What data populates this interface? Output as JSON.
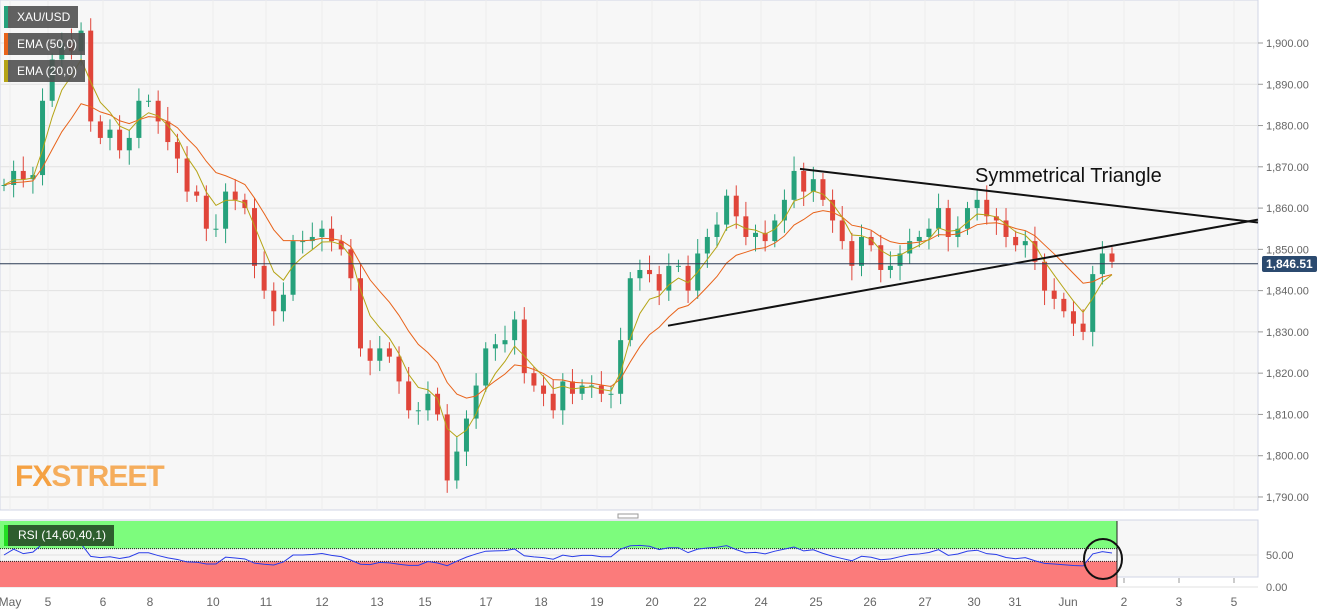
{
  "chart_data": {
    "type": "candlestick",
    "symbol": "XAU/USD",
    "indicators": [
      "EMA (50,0)",
      "EMA (20,0)"
    ],
    "colors": {
      "up": "#26a17b",
      "down": "#e0453a",
      "ema50": "#e8631a",
      "ema20": "#b5a416",
      "rsi": "#2a3de8",
      "overbought": "#7dfc7d",
      "oversold": "#fb7b7b"
    },
    "y_ticks": [
      "1,790.00",
      "1,800.00",
      "1,810.00",
      "1,820.00",
      "1,830.00",
      "1,840.00",
      "1,850.00",
      "1,860.00",
      "1,870.00",
      "1,880.00",
      "1,890.00",
      "1,900.00"
    ],
    "ylim": [
      1786,
      1911
    ],
    "x_ticks": [
      "May",
      "5",
      "6",
      "8",
      "10",
      "11",
      "12",
      "13",
      "15",
      "17",
      "18",
      "19",
      "20",
      "22",
      "24",
      "25",
      "26",
      "27",
      "30",
      "31",
      "Jun",
      "2",
      "3",
      "5"
    ],
    "approx_closes": [
      1865.6,
      1869,
      1867,
      1868,
      1886,
      1896,
      1900,
      1898,
      1903,
      1881,
      1877,
      1879,
      1874,
      1877,
      1886,
      1886,
      1881,
      1876,
      1872,
      1864,
      1863,
      1855,
      1855,
      1864,
      1862,
      1860,
      1846,
      1840,
      1835,
      1839,
      1852,
      1852,
      1853,
      1855,
      1852,
      1850,
      1843,
      1826,
      1823,
      1826,
      1824,
      1818,
      1811,
      1811,
      1815,
      1810,
      1794,
      1801,
      1809,
      1817,
      1826,
      1827,
      1828,
      1833,
      1820,
      1817,
      1815,
      1811,
      1818,
      1815,
      1817,
      1817,
      1815,
      1815,
      1828,
      1843,
      1845,
      1844,
      1840,
      1846,
      1846,
      1840,
      1849,
      1853,
      1856,
      1863,
      1858,
      1853,
      1854,
      1852,
      1857,
      1862,
      1869,
      1864,
      1867,
      1862,
      1857,
      1852,
      1846,
      1853,
      1851,
      1845,
      1846,
      1849,
      1852,
      1853,
      1855,
      1860,
      1853,
      1855,
      1860,
      1862,
      1858,
      1857,
      1853,
      1851,
      1852,
      1847,
      1840,
      1838,
      1835,
      1832,
      1830,
      1844,
      1849,
      1847
    ],
    "current_price": "1,846.51",
    "current_price_value": 1846.51,
    "annotation": "Symmetrical Triangle",
    "trendlines": [
      {
        "name": "upper",
        "from": {
          "x": "24",
          "y": 1869.5
        },
        "to": {
          "x": "5",
          "y": 1857
        }
      },
      {
        "name": "lower",
        "from": {
          "x": "20",
          "y": 1831.5
        },
        "to": {
          "x": "5",
          "y": 1857
        }
      }
    ],
    "rsi": {
      "label": "RSI (14,60,40,1)",
      "upper": 60,
      "lower": 40,
      "y_ticks": [
        "0.00",
        "50.00"
      ],
      "ylim": [
        0,
        100
      ]
    }
  },
  "branding": {
    "watermark_fx": "FX",
    "watermark_street": "STREET"
  }
}
